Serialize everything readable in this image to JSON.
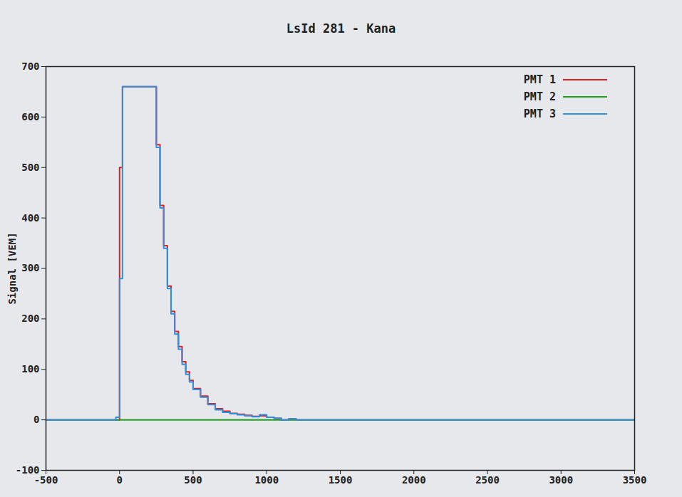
{
  "chart_data": {
    "type": "line",
    "title": "LsId 281 - Kana",
    "y_label": "Signal [VEM]",
    "x": [
      -500,
      -25,
      0,
      20,
      250,
      275,
      300,
      325,
      350,
      375,
      400,
      425,
      450,
      475,
      500,
      550,
      600,
      650,
      700,
      750,
      800,
      850,
      900,
      950,
      1000,
      1050,
      1100,
      1150,
      1200,
      1300,
      3500
    ],
    "series": [
      {
        "name": "PMT 1",
        "color": "#e02020",
        "values": [
          0,
          0,
          500,
          660,
          545,
          425,
          345,
          265,
          215,
          175,
          145,
          115,
          95,
          78,
          62,
          47,
          32,
          22,
          17,
          13,
          11,
          9,
          7,
          8,
          5,
          3,
          0,
          2,
          0,
          0,
          0
        ]
      },
      {
        "name": "PMT 2",
        "color": "#20a020",
        "values": [
          0,
          0,
          0,
          0,
          0,
          0,
          0,
          0,
          0,
          0,
          0,
          0,
          0,
          0,
          0,
          0,
          0,
          0,
          0,
          0,
          0,
          0,
          0,
          0,
          0,
          0,
          0,
          0,
          0,
          0,
          0
        ]
      },
      {
        "name": "PMT 3",
        "color": "#3090e0",
        "values": [
          0,
          5,
          280,
          660,
          540,
          420,
          340,
          260,
          210,
          170,
          140,
          110,
          90,
          75,
          60,
          45,
          30,
          20,
          15,
          12,
          10,
          8,
          6,
          10,
          5,
          3,
          0,
          2,
          0,
          0,
          0
        ]
      }
    ],
    "xlim": [
      -500,
      3500
    ],
    "xticks": [
      -500,
      0,
      500,
      1000,
      1500,
      2000,
      2500,
      3000,
      3500
    ],
    "ylim": [
      -100,
      700
    ],
    "yticks": [
      -100,
      0,
      100,
      200,
      300,
      400,
      500,
      600,
      700
    ],
    "grid": false,
    "legend": "top-right",
    "line_style": "step"
  }
}
